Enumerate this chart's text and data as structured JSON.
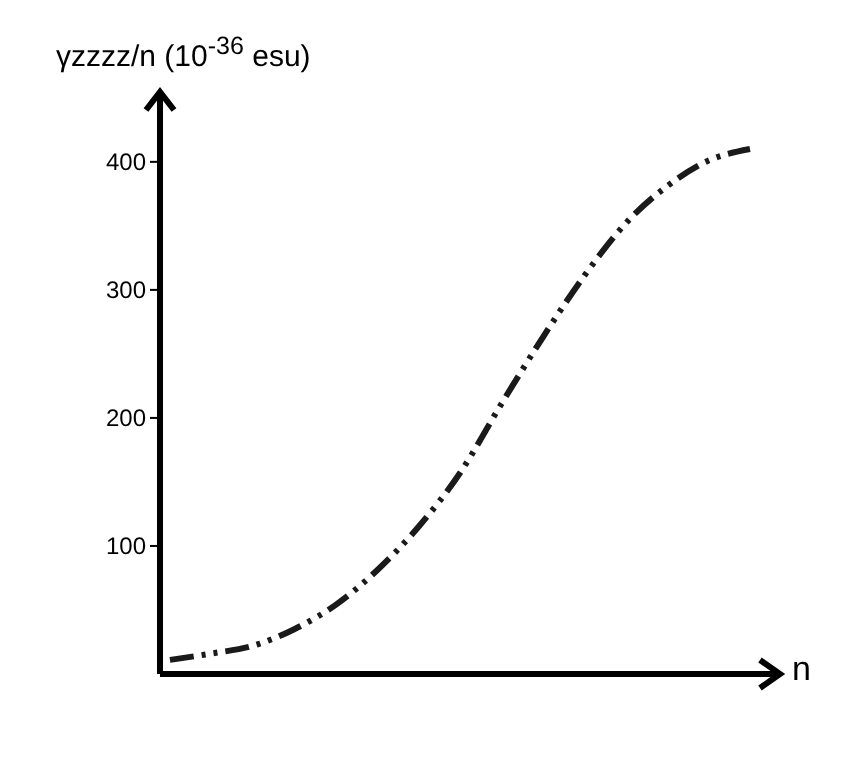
{
  "chart_data": {
    "type": "line",
    "ylabel": "γzzzz/n (10$^{-36}$ esu)",
    "xlabel": "n",
    "categories": [
      null,
      null,
      null,
      null,
      null,
      null,
      null,
      null,
      null,
      null,
      null,
      null,
      null,
      null,
      null
    ],
    "series": [
      {
        "color": "#1a1a1a",
        "values": [
          11,
          16,
          22,
          35,
          54,
          81,
          115,
          157,
          211,
          263,
          311,
          352,
          381,
          401,
          410
        ]
      }
    ],
    "ylim": [
      0,
      453
    ],
    "yticks": [
      100,
      200,
      300,
      400
    ],
    "tick_labels": "y",
    "grid": false,
    "legend": false,
    "marker": "none",
    "line_style": "dashed"
  }
}
